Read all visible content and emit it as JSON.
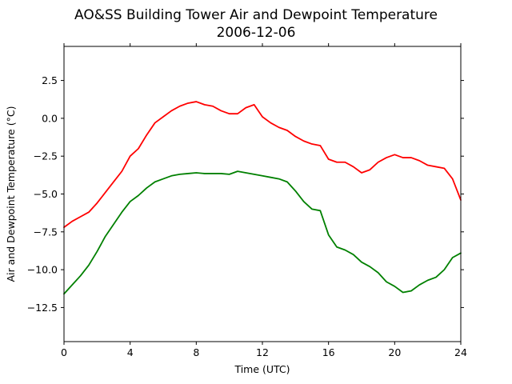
{
  "chart_data": {
    "type": "line",
    "title": "AO&SS Building Tower Air and Dewpoint Temperature",
    "subtitle": "2006-12-06",
    "xlabel": "Time (UTC)",
    "ylabel": "Air and Dewpoint Temperature (°C)",
    "xlim": [
      0,
      24
    ],
    "ylim": [
      -14.75,
      4.75
    ],
    "xticks": [
      0,
      4,
      8,
      12,
      16,
      20,
      24
    ],
    "xtick_labels": [
      "0",
      "4",
      "8",
      "12",
      "16",
      "20",
      "24"
    ],
    "yticks": [
      -12.5,
      -10.0,
      -7.5,
      -5.0,
      -2.5,
      0.0,
      2.5
    ],
    "ytick_labels": [
      "−12.5",
      "−10.0",
      "−7.5",
      "−5.0",
      "−2.5",
      "0.0",
      "2.5"
    ],
    "grid": false,
    "series": [
      {
        "color": "#ff0000",
        "x": [
          0,
          0.5,
          1,
          1.5,
          2,
          2.5,
          3,
          3.5,
          4,
          4.5,
          5,
          5.5,
          6,
          6.5,
          7,
          7.5,
          8,
          8.5,
          9,
          9.5,
          10,
          10.5,
          11,
          11.5,
          12,
          12.5,
          13,
          13.5,
          14,
          14.5,
          15,
          15.5,
          16,
          16.5,
          17,
          17.5,
          18,
          18.5,
          19,
          19.5,
          20,
          20.5,
          21,
          21.5,
          22,
          22.5,
          23,
          23.5,
          24
        ],
        "y": [
          -7.2,
          -6.8,
          -6.5,
          -6.2,
          -5.6,
          -4.9,
          -4.2,
          -3.5,
          -2.5,
          -2.0,
          -1.1,
          -0.3,
          0.1,
          0.5,
          0.8,
          1.0,
          1.1,
          0.9,
          0.8,
          0.5,
          0.3,
          0.3,
          0.7,
          0.9,
          0.1,
          -0.3,
          -0.6,
          -0.8,
          -1.2,
          -1.5,
          -1.7,
          -1.8,
          -2.7,
          -2.9,
          -2.9,
          -3.2,
          -3.6,
          -3.4,
          -2.9,
          -2.6,
          -2.4,
          -2.6,
          -2.6,
          -2.8,
          -3.1,
          -3.2,
          -3.3,
          -4.0,
          -5.4
        ]
      },
      {
        "color": "#008000",
        "x": [
          0,
          0.5,
          1,
          1.5,
          2,
          2.5,
          3,
          3.5,
          4,
          4.5,
          5,
          5.5,
          6,
          6.5,
          7,
          7.5,
          8,
          8.5,
          9,
          9.5,
          10,
          10.5,
          11,
          11.5,
          12,
          12.5,
          13,
          13.5,
          14,
          14.5,
          15,
          15.5,
          16,
          16.5,
          17,
          17.5,
          18,
          18.5,
          19,
          19.5,
          20,
          20.5,
          21,
          21.5,
          22,
          22.5,
          23,
          23.5,
          24
        ],
        "y": [
          -11.6,
          -11.0,
          -10.4,
          -9.7,
          -8.8,
          -7.8,
          -7.0,
          -6.2,
          -5.5,
          -5.1,
          -4.6,
          -4.2,
          -4.0,
          -3.8,
          -3.7,
          -3.65,
          -3.6,
          -3.65,
          -3.65,
          -3.65,
          -3.7,
          -3.5,
          -3.6,
          -3.7,
          -3.8,
          -3.9,
          -4.0,
          -4.2,
          -4.8,
          -5.5,
          -6.0,
          -6.1,
          -7.7,
          -8.5,
          -8.7,
          -9.0,
          -9.5,
          -9.8,
          -10.2,
          -10.8,
          -11.1,
          -11.5,
          -11.4,
          -11.0,
          -10.7,
          -10.5,
          -10.0,
          -9.2,
          -8.9
        ]
      }
    ]
  }
}
